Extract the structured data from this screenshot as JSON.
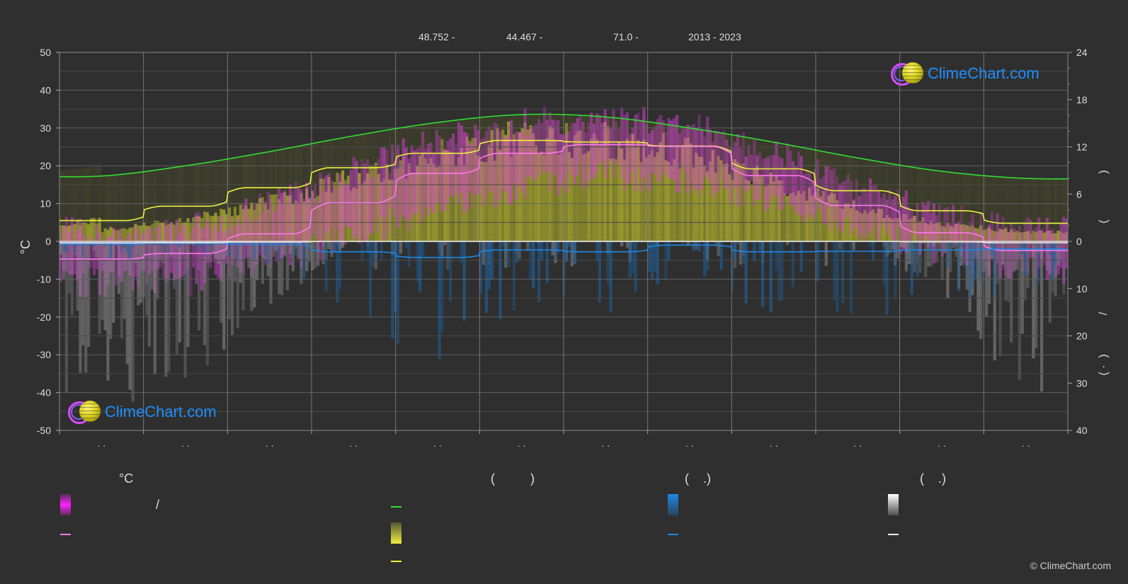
{
  "header": {
    "latitude": "48.752 -",
    "longitude": "44.467 -",
    "elevation": "71.0 -",
    "years": "2013 - 2023"
  },
  "logo": {
    "text": "ClimeChart.com"
  },
  "copyright": "© ClimeChart.com",
  "legend": {
    "temp_title": "°C",
    "sun_title": "(          )",
    "rain_title": "(    .)",
    "snow_title": "(    .)",
    "temp_range_label": "/"
  },
  "colors": {
    "background": "#2f2f2f",
    "daylight": "#33dd33",
    "sunshine": "#f0f040",
    "temp_mean": "#ff77ee",
    "temp_range": "#dd22dd",
    "rain": "#1e88e5",
    "snow": "#eeeeee",
    "grid": "#5a5a5a",
    "logo": "#1e90ff"
  },
  "chart_data": {
    "type": "line",
    "x_ticks": [
      "· ·",
      "· ·",
      "· ·",
      "· ·",
      "· ·",
      "· ·",
      "· ·",
      "· ·",
      "· ·",
      "· ·",
      "· ·",
      "· ·"
    ],
    "left_axis": {
      "label": "°C",
      "ylim": [
        -50,
        50
      ],
      "ticks": [
        50,
        40,
        30,
        20,
        10,
        0,
        -10,
        -20,
        -30,
        -40,
        -50
      ]
    },
    "right_axis_top": {
      "ylim": [
        0,
        24
      ],
      "ticks": [
        24,
        18,
        12,
        6,
        0
      ]
    },
    "right_axis_bottom": {
      "ylim": [
        0,
        40
      ],
      "ticks": [
        0,
        10,
        20,
        30,
        40
      ]
    },
    "right_axis_labels": [
      ")",
      "(",
      "/",
      ")",
      "( ·"
    ],
    "grid": true,
    "series": [
      {
        "key": "daylight",
        "unit": "hours",
        "values": [
          8.3,
          9.6,
          11.4,
          13.4,
          15.1,
          16.1,
          15.8,
          14.4,
          12.6,
          10.6,
          8.9,
          8.0
        ]
      },
      {
        "key": "sunshine_daily",
        "unit": "°C",
        "values": [
          5.5,
          9.3,
          14.2,
          19.5,
          23.3,
          26.7,
          26.3,
          25.2,
          19.2,
          13.4,
          8.1,
          4.8
        ]
      },
      {
        "key": "temp_mean_daily",
        "unit": "°C",
        "values": [
          -4.7,
          -3.2,
          2.0,
          10.2,
          18.0,
          23.3,
          25.6,
          25.1,
          17.4,
          9.5,
          2.3,
          -2.4
        ]
      },
      {
        "key": "rain_mean",
        "unit": "mm",
        "values": [
          0.6,
          0.4,
          0.6,
          2.2,
          3.4,
          1.8,
          2.2,
          0.8,
          2.2,
          2.1,
          1.8,
          1.6
        ]
      },
      {
        "key": "snow_mean",
        "unit": "mm",
        "values": [
          1.0,
          0.8,
          0.4,
          0.0,
          0.0,
          0.0,
          0.0,
          0.0,
          0.0,
          0.0,
          0.3,
          0.9
        ]
      }
    ],
    "temp_band": {
      "max": [
        0,
        2,
        8,
        17,
        25,
        30,
        31,
        30,
        22,
        13,
        5,
        1
      ],
      "min": [
        -10,
        -9,
        -4,
        3,
        10,
        16,
        19,
        18,
        12,
        5,
        -1,
        -6
      ]
    }
  }
}
